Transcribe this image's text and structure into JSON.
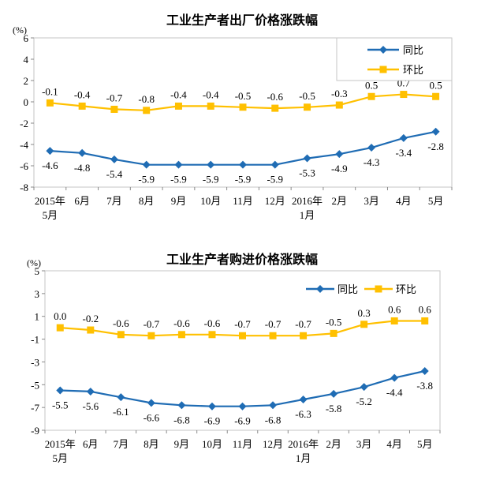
{
  "colors": {
    "yoy_blue": "#1F6CB4",
    "mom_yellow": "#FFC000",
    "plot_border": "#C6C6C6",
    "tick_mark": "#8A8A8A",
    "text": "#000000",
    "background": "#FFFFFF"
  },
  "chart_data": [
    {
      "type": "line",
      "title": "工业生产者出厂价格涨跌幅",
      "unit": "(%)",
      "ylim": [
        -8,
        6
      ],
      "yticks": [
        6,
        4,
        2,
        0,
        -2,
        -4,
        -6,
        -8
      ],
      "grid": false,
      "legend_position": "top-right-boxed-vertical",
      "categories": [
        [
          "2015年",
          "5月"
        ],
        [
          "6月"
        ],
        [
          "7月"
        ],
        [
          "8月"
        ],
        [
          "9月"
        ],
        [
          "10月"
        ],
        [
          "11月"
        ],
        [
          "12月"
        ],
        [
          "2016年",
          "1月"
        ],
        [
          "2月"
        ],
        [
          "3月"
        ],
        [
          "4月"
        ],
        [
          "5月"
        ]
      ],
      "series": [
        {
          "name": "同比",
          "marker": "diamond",
          "color": "#1F6CB4",
          "label_position": "below",
          "values": [
            -4.6,
            -4.8,
            -5.4,
            -5.9,
            -5.9,
            -5.9,
            -5.9,
            -5.9,
            -5.3,
            -4.9,
            -4.3,
            -3.4,
            -2.8
          ],
          "labels": [
            "-4.6",
            "-4.8",
            "-5.4",
            "-5.9",
            "-5.9",
            "-5.9",
            "-5.9",
            "-5.9",
            "-5.3",
            "-4.9",
            "-4.3",
            "-3.4",
            "-2.8"
          ]
        },
        {
          "name": "环比",
          "marker": "square",
          "color": "#FFC000",
          "label_position": "above",
          "values": [
            -0.1,
            -0.4,
            -0.7,
            -0.8,
            -0.4,
            -0.4,
            -0.5,
            -0.6,
            -0.5,
            -0.3,
            0.5,
            0.7,
            0.5
          ],
          "labels": [
            "-0.1",
            "-0.4",
            "-0.7",
            "-0.8",
            "-0.4",
            "-0.4",
            "-0.5",
            "-0.6",
            "-0.5",
            "-0.3",
            "0.5",
            "0.7",
            "0.5"
          ]
        }
      ]
    },
    {
      "type": "line",
      "title": "工业生产者购进价格涨跌幅",
      "unit": "(%)",
      "ylim": [
        -9,
        5
      ],
      "yticks": [
        5,
        3,
        1,
        -1,
        -3,
        -5,
        -7,
        -9
      ],
      "grid": false,
      "legend_position": "top-center-inline-horizontal",
      "categories": [
        [
          "2015年",
          "5月"
        ],
        [
          "6月"
        ],
        [
          "7月"
        ],
        [
          "8月"
        ],
        [
          "9月"
        ],
        [
          "10月"
        ],
        [
          "11月"
        ],
        [
          "12月"
        ],
        [
          "2016年",
          "1月"
        ],
        [
          "2月"
        ],
        [
          "3月"
        ],
        [
          "4月"
        ],
        [
          "5月"
        ]
      ],
      "series": [
        {
          "name": "同比",
          "marker": "diamond",
          "color": "#1F6CB4",
          "label_position": "below",
          "values": [
            -5.5,
            -5.6,
            -6.1,
            -6.6,
            -6.8,
            -6.9,
            -6.9,
            -6.8,
            -6.3,
            -5.8,
            -5.2,
            -4.4,
            -3.8
          ],
          "labels": [
            "-5.5",
            "-5.6",
            "-6.1",
            "-6.6",
            "-6.8",
            "-6.9",
            "-6.9",
            "-6.8",
            "-6.3",
            "-5.8",
            "-5.2",
            "-4.4",
            "-3.8"
          ]
        },
        {
          "name": "环比",
          "marker": "square",
          "color": "#FFC000",
          "label_position": "above",
          "values": [
            0.0,
            -0.2,
            -0.6,
            -0.7,
            -0.6,
            -0.6,
            -0.7,
            -0.7,
            -0.7,
            -0.5,
            0.3,
            0.6,
            0.6
          ],
          "labels": [
            "0.0",
            "-0.2",
            "-0.6",
            "-0.7",
            "-0.6",
            "-0.6",
            "-0.7",
            "-0.7",
            "-0.7",
            "-0.5",
            "0.3",
            "0.6",
            "0.6"
          ]
        }
      ]
    }
  ]
}
